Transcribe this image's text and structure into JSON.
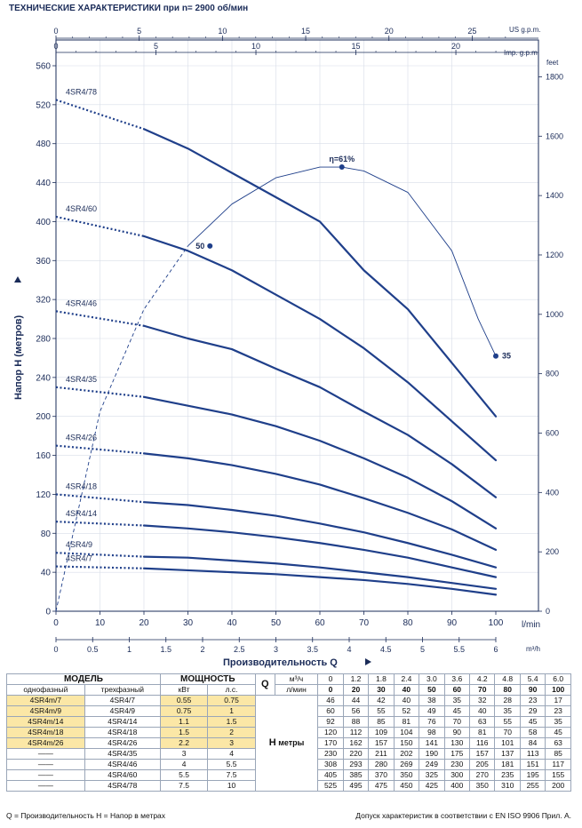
{
  "title": "ТЕХНИЧЕСКИЕ ХАРАКТЕРИСТИКИ при n= 2900 об/мин",
  "chart_data": {
    "type": "line",
    "x_label": "Производительность Q",
    "y_label": "Напор H (метров)",
    "x_unit": "l/min",
    "x_range": [
      0,
      100
    ],
    "y_range": [
      0,
      560
    ],
    "x_ticks": [
      "0",
      "10",
      "20",
      "30",
      "40",
      "50",
      "60",
      "70",
      "80",
      "90",
      "100"
    ],
    "y_ticks": [
      "0",
      "40",
      "80",
      "120",
      "160",
      "200",
      "240",
      "280",
      "320",
      "360",
      "400",
      "440",
      "480",
      "520",
      "560"
    ],
    "m3h_unit": "m³/h",
    "m3h_ticks": [
      "0",
      "0.5",
      "1",
      "1.5",
      "2",
      "2.5",
      "3",
      "3.5",
      "4",
      "4.5",
      "5",
      "5.5",
      "6"
    ],
    "usgpm_unit": "US g.p.m.",
    "usgpm_ticks": [
      "0",
      "5",
      "10",
      "15",
      "20",
      "25"
    ],
    "impgpm_unit": "Imp. g.p.m.",
    "impgpm_ticks": [
      "0",
      "5",
      "10",
      "15",
      "20"
    ],
    "feet_unit": "feet",
    "feet_ticks": [
      "0",
      "200",
      "400",
      "600",
      "800",
      "1000",
      "1200",
      "1400",
      "1600",
      "1800"
    ],
    "x": [
      0,
      20,
      30,
      40,
      50,
      60,
      70,
      80,
      90,
      100
    ],
    "series": [
      {
        "name": "4SR4/7",
        "values": [
          46,
          44,
          42,
          40,
          38,
          35,
          32,
          28,
          23,
          17
        ]
      },
      {
        "name": "4SR4/9",
        "values": [
          60,
          56,
          55,
          52,
          49,
          45,
          40,
          35,
          29,
          23
        ]
      },
      {
        "name": "4SR4/14",
        "values": [
          92,
          88,
          85,
          81,
          76,
          70,
          63,
          55,
          45,
          35
        ]
      },
      {
        "name": "4SR4/18",
        "values": [
          120,
          112,
          109,
          104,
          98,
          90,
          81,
          70,
          58,
          45
        ]
      },
      {
        "name": "4SR4/26",
        "values": [
          170,
          162,
          157,
          150,
          141,
          130,
          116,
          101,
          84,
          63
        ]
      },
      {
        "name": "4SR4/35",
        "values": [
          230,
          220,
          211,
          202,
          190,
          175,
          157,
          137,
          113,
          85
        ]
      },
      {
        "name": "4SR4/46",
        "values": [
          308,
          293,
          280,
          269,
          249,
          230,
          205,
          181,
          151,
          117
        ]
      },
      {
        "name": "4SR4/60",
        "values": [
          405,
          385,
          370,
          350,
          325,
          300,
          270,
          235,
          195,
          155
        ]
      },
      {
        "name": "4SR4/78",
        "values": [
          525,
          495,
          475,
          450,
          425,
          400,
          350,
          310,
          255,
          200
        ]
      }
    ],
    "efficiency": {
      "label_max": "η=61%",
      "label_50": "50",
      "label_35": "35",
      "points": [
        [
          0,
          0
        ],
        [
          10,
          205
        ],
        [
          20,
          310
        ],
        [
          30,
          375
        ],
        [
          40,
          418
        ],
        [
          50,
          445
        ],
        [
          60,
          456
        ],
        [
          65,
          456
        ],
        [
          70,
          452
        ],
        [
          80,
          430
        ],
        [
          90,
          370
        ],
        [
          96,
          300
        ],
        [
          100,
          262
        ]
      ]
    }
  },
  "table": {
    "model_header": "МОДЕЛЬ",
    "power_header": "МОЩНОСТЬ",
    "single_phase": "однофазный",
    "three_phase": "трехфазный",
    "kw": "кВт",
    "hp": "л.с.",
    "q_label": "Q",
    "m3h": "м³/ч",
    "lmin": "л/мин",
    "h_label": "H",
    "meters": "метры",
    "q_m3h": [
      "0",
      "1.2",
      "1.8",
      "2.4",
      "3.0",
      "3.6",
      "4.2",
      "4.8",
      "5.4",
      "6.0"
    ],
    "q_lmin": [
      "0",
      "20",
      "30",
      "40",
      "50",
      "60",
      "70",
      "80",
      "90",
      "100"
    ],
    "rows": [
      {
        "mono": "4SR4m/7",
        "tri": "4SR4/7",
        "kw": "0.55",
        "hp": "0.75",
        "h": [
          "46",
          "44",
          "42",
          "40",
          "38",
          "35",
          "32",
          "28",
          "23",
          "17"
        ]
      },
      {
        "mono": "4SR4m/9",
        "tri": "4SR4/9",
        "kw": "0.75",
        "hp": "1",
        "h": [
          "60",
          "56",
          "55",
          "52",
          "49",
          "45",
          "40",
          "35",
          "29",
          "23"
        ]
      },
      {
        "mono": "4SR4m/14",
        "tri": "4SR4/14",
        "kw": "1.1",
        "hp": "1.5",
        "h": [
          "92",
          "88",
          "85",
          "81",
          "76",
          "70",
          "63",
          "55",
          "45",
          "35"
        ]
      },
      {
        "mono": "4SR4m/18",
        "tri": "4SR4/18",
        "kw": "1.5",
        "hp": "2",
        "h": [
          "120",
          "112",
          "109",
          "104",
          "98",
          "90",
          "81",
          "70",
          "58",
          "45"
        ]
      },
      {
        "mono": "4SR4m/26",
        "tri": "4SR4/26",
        "kw": "2.2",
        "hp": "3",
        "h": [
          "170",
          "162",
          "157",
          "150",
          "141",
          "130",
          "116",
          "101",
          "84",
          "63"
        ]
      },
      {
        "mono": "——",
        "tri": "4SR4/35",
        "kw": "3",
        "hp": "4",
        "h": [
          "230",
          "220",
          "211",
          "202",
          "190",
          "175",
          "157",
          "137",
          "113",
          "85"
        ]
      },
      {
        "mono": "——",
        "tri": "4SR4/46",
        "kw": "4",
        "hp": "5.5",
        "h": [
          "308",
          "293",
          "280",
          "269",
          "249",
          "230",
          "205",
          "181",
          "151",
          "117"
        ]
      },
      {
        "mono": "——",
        "tri": "4SR4/60",
        "kw": "5.5",
        "hp": "7.5",
        "h": [
          "405",
          "385",
          "370",
          "350",
          "325",
          "300",
          "270",
          "235",
          "195",
          "155"
        ]
      },
      {
        "mono": "——",
        "tri": "4SR4/78",
        "kw": "7.5",
        "hp": "10",
        "h": [
          "525",
          "495",
          "475",
          "450",
          "425",
          "400",
          "350",
          "310",
          "255",
          "200"
        ]
      }
    ]
  },
  "footer": {
    "left": "Q = Производительность    H = Напор в метрах",
    "right": "Допуск характеристик в соответствии с EN ISO 9906 Прил.  A."
  },
  "colors": {
    "curve": "#1f3f8a",
    "text": "#1a2b58",
    "grid": "#d7dde8",
    "mono_bg": "#fbe7a6"
  }
}
